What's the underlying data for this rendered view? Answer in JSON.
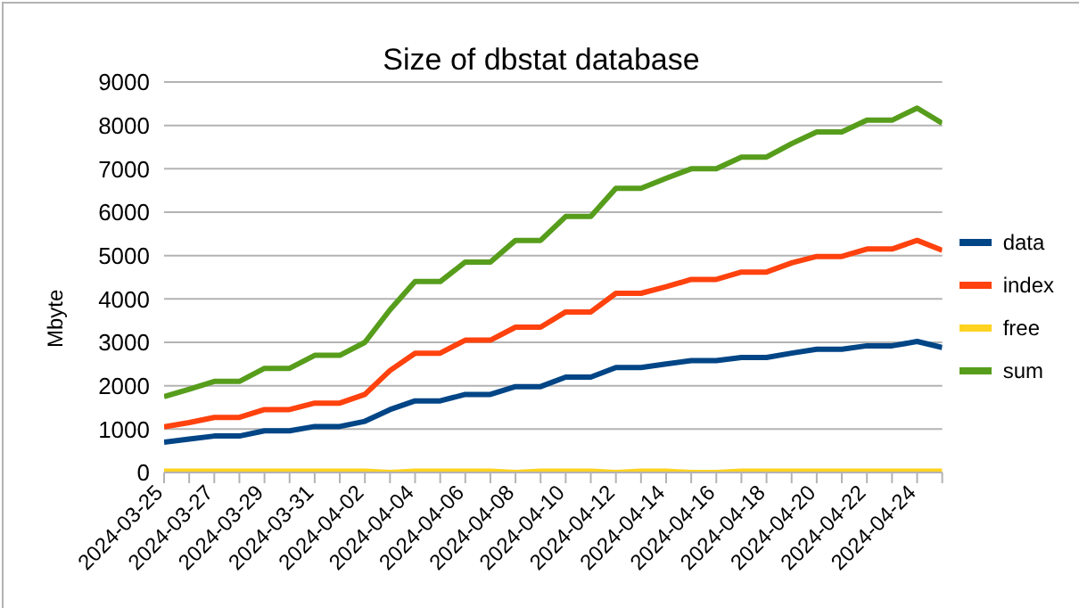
{
  "chart_data": {
    "type": "line",
    "title": "Size of dbstat database",
    "ylabel": "Mbyte",
    "categories": [
      "2024-03-25",
      null,
      "2024-03-27",
      null,
      "2024-03-29",
      null,
      "2024-03-31",
      null,
      "2024-04-02",
      null,
      "2024-04-04",
      null,
      "2024-04-06",
      null,
      "2024-04-08",
      null,
      "2024-04-10",
      null,
      "2024-04-12",
      null,
      "2024-04-14",
      null,
      "2024-04-16",
      null,
      "2024-04-18",
      null,
      "2024-04-20",
      null,
      "2024-04-22",
      null,
      "2024-04-24",
      null
    ],
    "series": [
      {
        "name": "data",
        "color": "#004586",
        "values": [
          700,
          770,
          840,
          840,
          960,
          960,
          1060,
          1060,
          1180,
          1450,
          1650,
          1650,
          1800,
          1800,
          1980,
          1980,
          2200,
          2200,
          2420,
          2420,
          2500,
          2580,
          2580,
          2650,
          2650,
          2750,
          2840,
          2840,
          2920,
          2920,
          3020,
          2880
        ]
      },
      {
        "name": "index",
        "color": "#ff420e",
        "values": [
          1050,
          1150,
          1270,
          1270,
          1450,
          1450,
          1600,
          1600,
          1800,
          2350,
          2750,
          2750,
          3050,
          3050,
          3350,
          3350,
          3700,
          3700,
          4130,
          4130,
          4280,
          4450,
          4450,
          4620,
          4620,
          4830,
          4980,
          4980,
          5150,
          5150,
          5350,
          5120
        ]
      },
      {
        "name": "free",
        "color": "#ffd320",
        "values": [
          30,
          30,
          30,
          30,
          30,
          30,
          30,
          30,
          30,
          0,
          30,
          30,
          30,
          30,
          0,
          30,
          30,
          30,
          0,
          30,
          30,
          0,
          0,
          30,
          30,
          30,
          30,
          30,
          30,
          30,
          30,
          30
        ]
      },
      {
        "name": "sum",
        "color": "#579d1c",
        "values": [
          1750,
          1920,
          2100,
          2100,
          2400,
          2400,
          2700,
          2700,
          3000,
          3750,
          4400,
          4400,
          4850,
          4850,
          5350,
          5350,
          5900,
          5900,
          6550,
          6550,
          6780,
          7000,
          7000,
          7270,
          7270,
          7580,
          7850,
          7850,
          8120,
          8120,
          8400,
          8050
        ]
      }
    ],
    "ylim": [
      0,
      9000
    ],
    "yticks": [
      0,
      1000,
      2000,
      3000,
      4000,
      5000,
      6000,
      7000,
      8000,
      9000
    ],
    "grid": "y",
    "legend": "right",
    "marker": "none",
    "line_style": "solid"
  }
}
